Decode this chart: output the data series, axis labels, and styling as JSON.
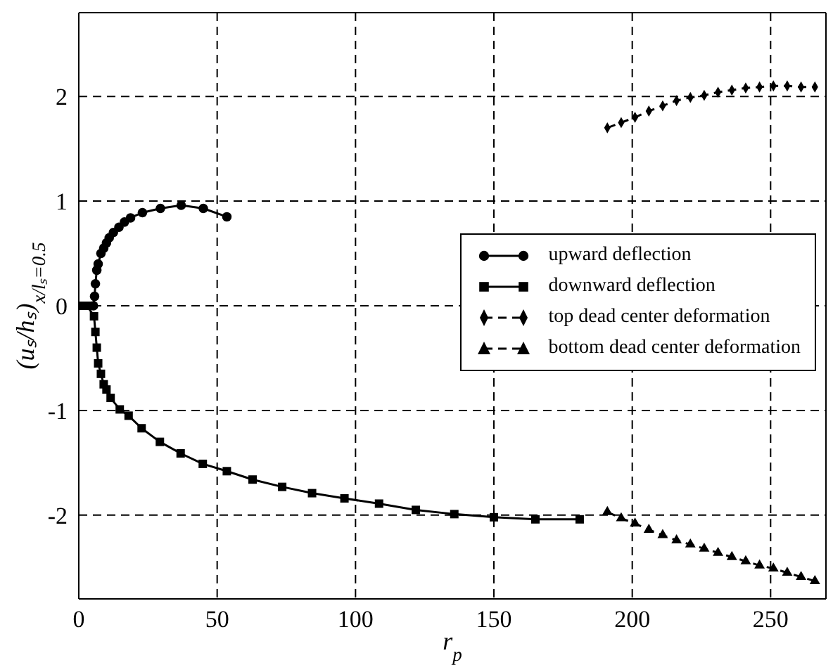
{
  "chart_data": {
    "type": "line",
    "xlabel": "r$_{p}$",
    "ylabel": "(uₛ/hₛ)$_{x/lₛ=0.5}$",
    "xlim": [
      0,
      270
    ],
    "ylim": [
      -2.8,
      2.8
    ],
    "xticks": [
      0,
      50,
      100,
      150,
      200,
      250
    ],
    "yticks": [
      -2,
      -1,
      0,
      1,
      2
    ],
    "grid": true,
    "legend": "right",
    "series": [
      {
        "name": "upward deflection",
        "color": "#000000",
        "marker": "circle",
        "line_style": "solid",
        "x": [
          5.3,
          5.7,
          6,
          6.5,
          7,
          8,
          9,
          10,
          11,
          12.5,
          14.5,
          16.5,
          18.7,
          23,
          29.5,
          37,
          45,
          53.5
        ],
        "values": [
          0,
          0.09,
          0.21,
          0.34,
          0.4,
          0.5,
          0.55,
          0.6,
          0.65,
          0.7,
          0.75,
          0.8,
          0.84,
          0.89,
          0.93,
          0.96,
          0.93,
          0.85
        ]
      },
      {
        "name": "downward deflection",
        "color": "#000000",
        "marker": "square",
        "line_style": "solid",
        "x": [
          1,
          3,
          5.5,
          6,
          6.5,
          7,
          8,
          9,
          10,
          11.5,
          14.8,
          18,
          22.7,
          29.3,
          36.8,
          44.8,
          53.5,
          62.8,
          73.5,
          84.3,
          96,
          108.5,
          121.8,
          135.7,
          150,
          165,
          181
        ],
        "values": [
          0,
          0,
          -0.1,
          -0.25,
          -0.4,
          -0.55,
          -0.65,
          -0.75,
          -0.8,
          -0.88,
          -0.99,
          -1.05,
          -1.17,
          -1.3,
          -1.41,
          -1.51,
          -1.58,
          -1.66,
          -1.73,
          -1.79,
          -1.84,
          -1.89,
          -1.95,
          -1.99,
          -2.02,
          -2.04,
          -2.04
        ]
      },
      {
        "name": "top dead center deformation",
        "color": "#000000",
        "marker": "diamond",
        "line_style": "dashed",
        "x": [
          191,
          196,
          201,
          206,
          211,
          216,
          221,
          226,
          231,
          236,
          241,
          246,
          251,
          256,
          261,
          266
        ],
        "values": [
          1.7,
          1.75,
          1.8,
          1.86,
          1.91,
          1.96,
          1.99,
          2.01,
          2.04,
          2.06,
          2.08,
          2.09,
          2.1,
          2.1,
          2.09,
          2.09
        ]
      },
      {
        "name": "bottom dead center deformation",
        "color": "#000000",
        "marker": "triangle",
        "line_style": "dashed",
        "x": [
          191,
          196,
          201,
          206,
          211,
          216,
          221,
          226,
          231,
          236,
          241,
          246,
          251,
          256,
          261,
          266
        ],
        "values": [
          -1.97,
          -2.03,
          -2.08,
          -2.14,
          -2.19,
          -2.24,
          -2.28,
          -2.32,
          -2.36,
          -2.4,
          -2.44,
          -2.48,
          -2.51,
          -2.55,
          -2.59,
          -2.63
        ]
      }
    ]
  }
}
